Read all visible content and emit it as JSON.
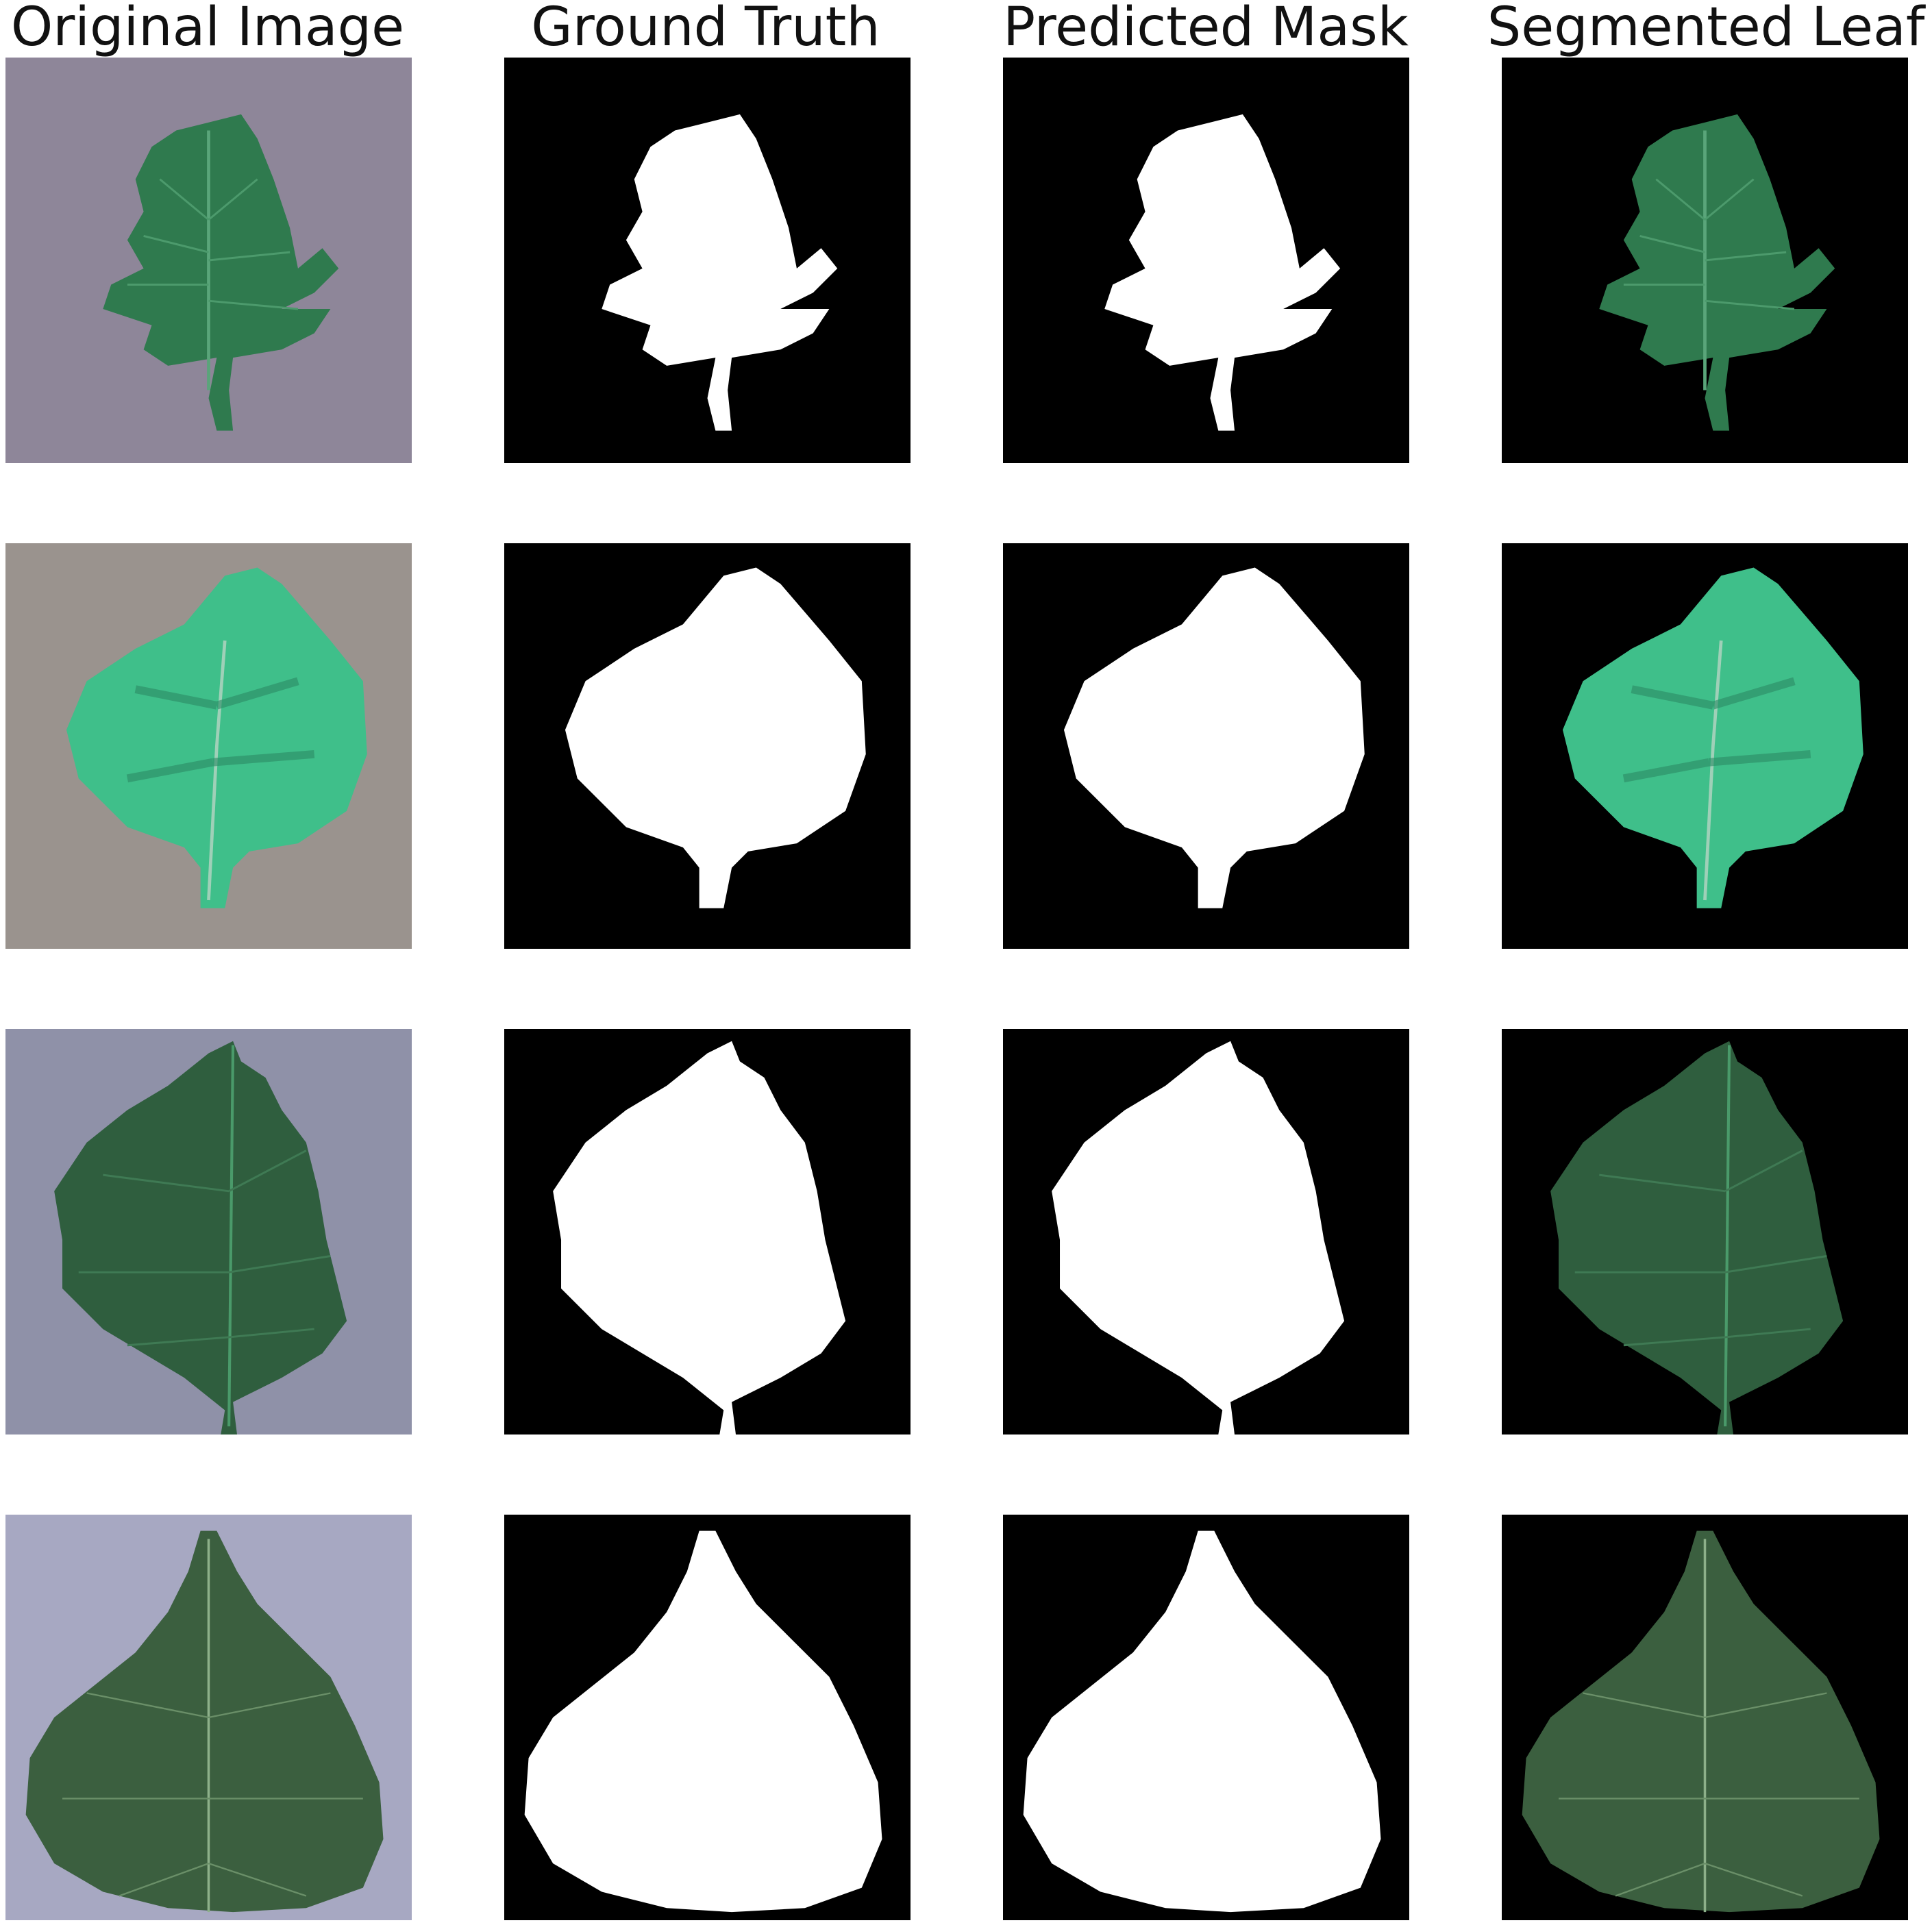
{
  "columns": {
    "original": "Original Image",
    "ground_truth": "Ground Truth",
    "predicted": "Predicted Mask",
    "segmented": "Segmented Leaf"
  },
  "colors": {
    "mask_foreground": "#ffffff",
    "mask_background": "#000000",
    "leaf_green": "#2f7a4e",
    "leaf_teal": "#3fbf8a",
    "photo_bg_purple": "#8e8699",
    "photo_bg_gray": "#9a938e",
    "photo_bg_lavender": "#a7a8c2"
  },
  "rows": [
    {
      "leaf": "tomato-leaf",
      "background": "purple-gray"
    },
    {
      "leaf": "round-leaf",
      "background": "gray"
    },
    {
      "leaf": "serrated-leaf",
      "background": "gray-blue"
    },
    {
      "leaf": "heart-leaf",
      "background": "lavender"
    }
  ]
}
